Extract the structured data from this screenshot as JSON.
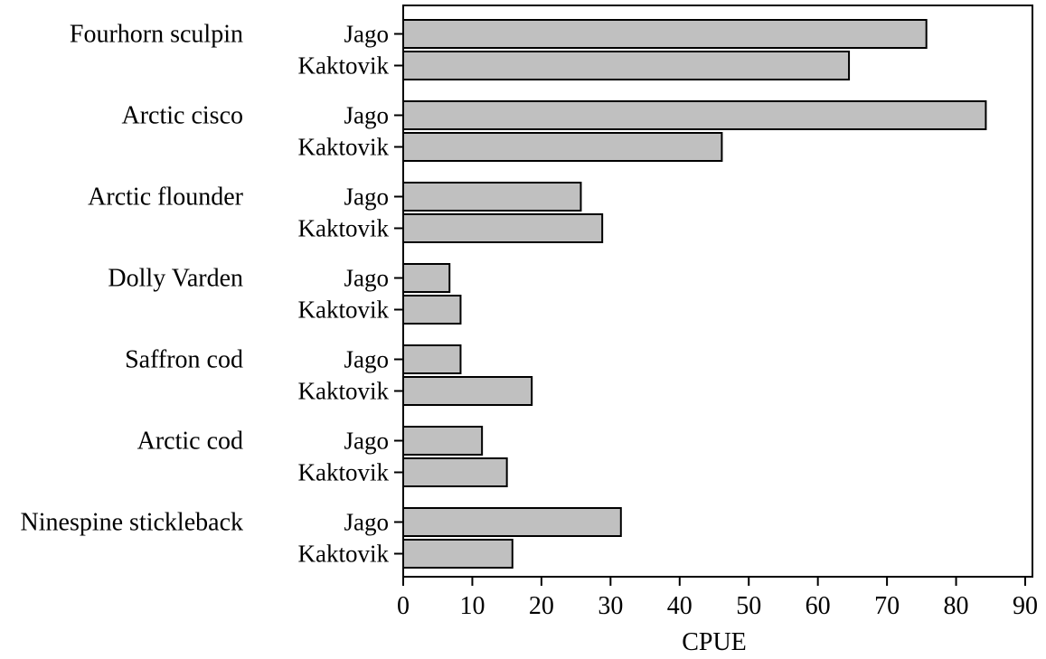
{
  "chart_data": {
    "type": "bar",
    "orientation": "horizontal",
    "xlabel": "CPUE",
    "xlim": [
      0,
      90
    ],
    "x_ticks": [
      "0",
      "10",
      "20",
      "30",
      "40",
      "50",
      "60",
      "70",
      "80",
      "90"
    ],
    "grid": false,
    "bar_color": "#c0c0c0",
    "species": [
      {
        "name": "Fourhorn sculpin",
        "bars": [
          {
            "label": "Jago",
            "value": 75.7
          },
          {
            "label": "Kaktovik",
            "value": 64.5
          }
        ]
      },
      {
        "name": "Arctic cisco",
        "bars": [
          {
            "label": "Jago",
            "value": 84.3
          },
          {
            "label": "Kaktovik",
            "value": 46.1
          }
        ]
      },
      {
        "name": "Arctic flounder",
        "bars": [
          {
            "label": "Jago",
            "value": 25.7
          },
          {
            "label": "Kaktovik",
            "value": 28.8
          }
        ]
      },
      {
        "name": "Dolly Varden",
        "bars": [
          {
            "label": "Jago",
            "value": 6.7
          },
          {
            "label": "Kaktovik",
            "value": 8.3
          }
        ]
      },
      {
        "name": "Saffron cod",
        "bars": [
          {
            "label": "Jago",
            "value": 8.3
          },
          {
            "label": "Kaktovik",
            "value": 18.6
          }
        ]
      },
      {
        "name": "Arctic cod",
        "bars": [
          {
            "label": "Jago",
            "value": 11.4
          },
          {
            "label": "Kaktovik",
            "value": 15.0
          }
        ]
      },
      {
        "name": "Ninespine stickleback",
        "bars": [
          {
            "label": "Jago",
            "value": 31.5
          },
          {
            "label": "Kaktovik",
            "value": 15.8
          }
        ]
      }
    ]
  }
}
